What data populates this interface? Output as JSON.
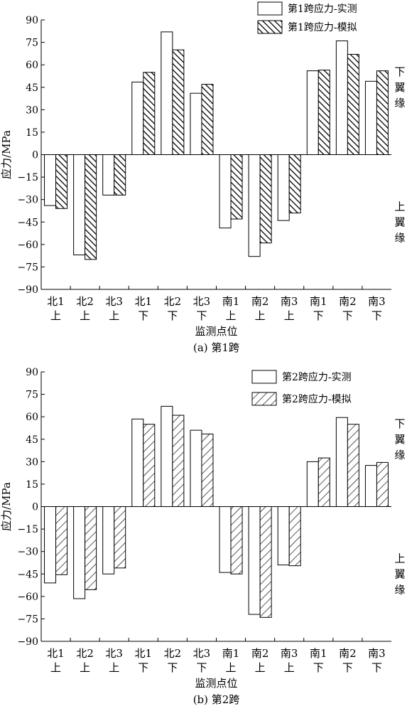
{
  "chart_data": [
    {
      "type": "bar",
      "caption": "(a) 第1跨",
      "xlabel": "监测点位",
      "ylabel": "应力/MPa",
      "ylim": [
        -90,
        90
      ],
      "yticks": [
        90,
        75,
        60,
        45,
        30,
        15,
        0,
        -15,
        -30,
        -45,
        -60,
        -75,
        -90
      ],
      "categories": [
        [
          "北1",
          "上"
        ],
        [
          "北2",
          "上"
        ],
        [
          "北3",
          "上"
        ],
        [
          "北1",
          "下"
        ],
        [
          "北2",
          "下"
        ],
        [
          "北3",
          "下"
        ],
        [
          "南1",
          "上"
        ],
        [
          "南2",
          "上"
        ],
        [
          "南3",
          "上"
        ],
        [
          "南1",
          "下"
        ],
        [
          "南2",
          "下"
        ],
        [
          "南3",
          "下"
        ]
      ],
      "series": [
        {
          "name": "第1跨应力-实测",
          "pattern": "empty",
          "values": [
            -34,
            -67,
            -27,
            48.5,
            82,
            41,
            -49,
            -68,
            -44,
            56,
            76,
            49
          ]
        },
        {
          "name": "第1跨应力-模拟",
          "pattern": "backslash",
          "values": [
            -36,
            -70,
            -27,
            55,
            70,
            47,
            -43,
            -59,
            -39,
            56.5,
            67,
            56
          ]
        }
      ],
      "side_labels": [
        {
          "text": "下翼缘",
          "side": "positive"
        },
        {
          "text": "上翼缘",
          "side": "negative"
        }
      ],
      "legend": "top-right"
    },
    {
      "type": "bar",
      "caption": "(b) 第2跨",
      "xlabel": "监测点位",
      "ylabel": "应力/MPa",
      "ylim": [
        -90,
        90
      ],
      "yticks": [
        90,
        75,
        60,
        45,
        30,
        15,
        0,
        -15,
        -30,
        -45,
        -60,
        -75,
        -90
      ],
      "categories": [
        [
          "北1",
          "上"
        ],
        [
          "北2",
          "上"
        ],
        [
          "北3",
          "上"
        ],
        [
          "北1",
          "下"
        ],
        [
          "北2",
          "下"
        ],
        [
          "北3",
          "下"
        ],
        [
          "南1",
          "上"
        ],
        [
          "南2",
          "上"
        ],
        [
          "南3",
          "上"
        ],
        [
          "南1",
          "下"
        ],
        [
          "南2",
          "下"
        ],
        [
          "南3",
          "下"
        ]
      ],
      "series": [
        {
          "name": "第2跨应力-实测",
          "pattern": "empty",
          "values": [
            -51,
            -61.5,
            -45,
            58.5,
            67,
            51,
            -44,
            -72,
            -39,
            30,
            59.5,
            27.5
          ]
        },
        {
          "name": "第2跨应力-模拟",
          "pattern": "slash",
          "values": [
            -45.5,
            -55.5,
            -41,
            55,
            61,
            48.5,
            -45,
            -74,
            -39.5,
            32.5,
            55,
            29.5
          ]
        }
      ],
      "side_labels": [
        {
          "text": "下翼缘",
          "side": "positive"
        },
        {
          "text": "上翼缘",
          "side": "negative"
        }
      ],
      "legend": "top-right"
    }
  ]
}
